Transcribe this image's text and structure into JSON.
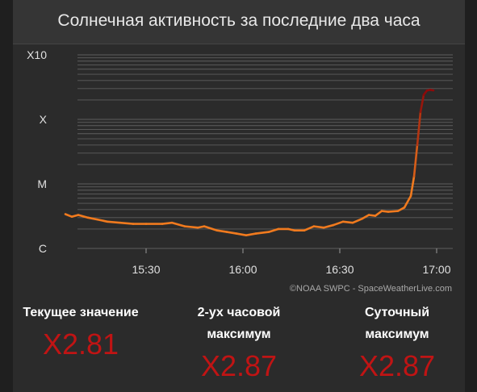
{
  "header": {
    "title": "Солнечная активность за последние два часа"
  },
  "chart_data": {
    "type": "line",
    "title": "Солнечная активность за последние два часа",
    "xlabel": "",
    "ylabel": "",
    "y_scale": "log",
    "y_range": [
      "C1",
      "X10"
    ],
    "grid": true,
    "x_range": [
      "15:05",
      "17:05"
    ],
    "x_ticks": [
      "15:30",
      "16:00",
      "16:30",
      "17:00"
    ],
    "y_ticks": [
      "X10",
      "X",
      "M",
      "C"
    ],
    "series": [
      {
        "color_low": "#f07a1e",
        "color_high": "#8c0a0a",
        "points": [
          {
            "t": "15:05",
            "v": "C3.4"
          },
          {
            "t": "15:07",
            "v": "C3.1"
          },
          {
            "t": "15:09",
            "v": "C3.3"
          },
          {
            "t": "15:12",
            "v": "C3.0"
          },
          {
            "t": "15:15",
            "v": "C2.8"
          },
          {
            "t": "15:18",
            "v": "C2.6"
          },
          {
            "t": "15:22",
            "v": "C2.5"
          },
          {
            "t": "15:26",
            "v": "C2.4"
          },
          {
            "t": "15:30",
            "v": "C2.4"
          },
          {
            "t": "15:35",
            "v": "C2.4"
          },
          {
            "t": "15:38",
            "v": "C2.5"
          },
          {
            "t": "15:42",
            "v": "C2.2"
          },
          {
            "t": "15:46",
            "v": "C2.1"
          },
          {
            "t": "15:48",
            "v": "C2.2"
          },
          {
            "t": "15:52",
            "v": "C1.9"
          },
          {
            "t": "15:55",
            "v": "C1.8"
          },
          {
            "t": "15:58",
            "v": "C1.7"
          },
          {
            "t": "16:01",
            "v": "C1.6"
          },
          {
            "t": "16:04",
            "v": "C1.7"
          },
          {
            "t": "16:08",
            "v": "C1.8"
          },
          {
            "t": "16:11",
            "v": "C2.0"
          },
          {
            "t": "16:14",
            "v": "C2.0"
          },
          {
            "t": "16:16",
            "v": "C1.9"
          },
          {
            "t": "16:19",
            "v": "C1.9"
          },
          {
            "t": "16:22",
            "v": "C2.2"
          },
          {
            "t": "16:25",
            "v": "C2.1"
          },
          {
            "t": "16:28",
            "v": "C2.3"
          },
          {
            "t": "16:31",
            "v": "C2.6"
          },
          {
            "t": "16:34",
            "v": "C2.5"
          },
          {
            "t": "16:37",
            "v": "C2.9"
          },
          {
            "t": "16:39",
            "v": "C3.3"
          },
          {
            "t": "16:41",
            "v": "C3.2"
          },
          {
            "t": "16:43",
            "v": "C3.8"
          },
          {
            "t": "16:45",
            "v": "C3.7"
          },
          {
            "t": "16:48",
            "v": "C3.8"
          },
          {
            "t": "16:50",
            "v": "C4.3"
          },
          {
            "t": "16:52",
            "v": "C6.5"
          },
          {
            "t": "16:53",
            "v": "M1.3"
          },
          {
            "t": "16:54",
            "v": "M4.0"
          },
          {
            "t": "16:55",
            "v": "X1.3"
          },
          {
            "t": "16:56",
            "v": "X2.4"
          },
          {
            "t": "16:57",
            "v": "X2.8"
          },
          {
            "t": "16:58",
            "v": "X2.87"
          },
          {
            "t": "16:59",
            "v": "X2.81"
          }
        ]
      }
    ]
  },
  "credit": "©NOAA SWPC - SpaceWeatherLive.com",
  "stats": {
    "current": {
      "label_lines": [
        "Текущее значение"
      ],
      "value": "X2.81"
    },
    "two_hour_max": {
      "label_lines": [
        "2-ух часовой",
        "максимум"
      ],
      "value": "X2.87"
    },
    "daily_max": {
      "label_lines": [
        "Суточный",
        "максимум"
      ],
      "value": "X2.87"
    }
  },
  "colors": {
    "background": "#2b2b2b",
    "header": "#353535",
    "grid": "#5e5e5e",
    "value_red": "#c01414",
    "line_orange": "#f07a1e"
  }
}
